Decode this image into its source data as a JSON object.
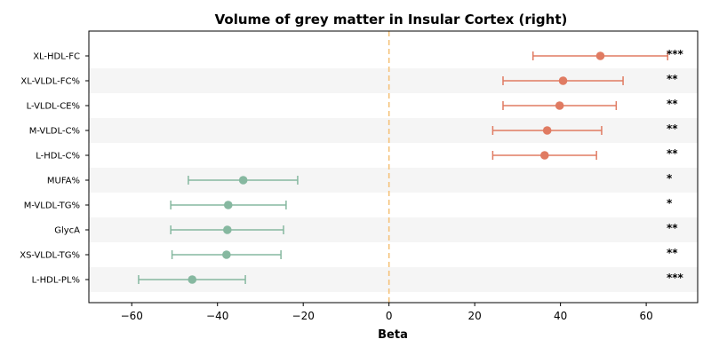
{
  "chart_data": {
    "type": "forest",
    "title": "Volume of grey matter in Insular Cortex (right)",
    "xlabel": "Beta",
    "ylabel": "",
    "xlim": [
      -70,
      72
    ],
    "xticks": [
      -60,
      -40,
      -20,
      0,
      20,
      40,
      60
    ],
    "reference_line": 0,
    "grid": false,
    "row_banding": true,
    "colors": {
      "positive": "#e07b62",
      "negative": "#86b8a0",
      "reference": "#f5c27a",
      "band": "#f5f5f5"
    },
    "rows": [
      {
        "label": "XL-HDL-FC",
        "beta": 49.3,
        "lo": 33.6,
        "hi": 65.0,
        "sig": "***"
      },
      {
        "label": "XL-VLDL-FC%",
        "beta": 40.6,
        "lo": 26.6,
        "hi": 54.6,
        "sig": "**"
      },
      {
        "label": "L-VLDL-CE%",
        "beta": 39.8,
        "lo": 26.6,
        "hi": 53.0,
        "sig": "**"
      },
      {
        "label": "M-VLDL-C%",
        "beta": 36.9,
        "lo": 24.2,
        "hi": 49.6,
        "sig": "**"
      },
      {
        "label": "L-HDL-C%",
        "beta": 36.3,
        "lo": 24.2,
        "hi": 48.4,
        "sig": "**"
      },
      {
        "label": "MUFA%",
        "beta": -34.0,
        "lo": -46.8,
        "hi": -21.3,
        "sig": "*"
      },
      {
        "label": "M-VLDL-TG%",
        "beta": -37.5,
        "lo": -50.9,
        "hi": -24.0,
        "sig": "*"
      },
      {
        "label": "GlycA",
        "beta": -37.7,
        "lo": -50.9,
        "hi": -24.6,
        "sig": "**"
      },
      {
        "label": "XS-VLDL-TG%",
        "beta": -37.9,
        "lo": -50.6,
        "hi": -25.2,
        "sig": "**"
      },
      {
        "label": "L-HDL-PL%",
        "beta": -45.9,
        "lo": -58.4,
        "hi": -33.5,
        "sig": "***"
      }
    ]
  }
}
